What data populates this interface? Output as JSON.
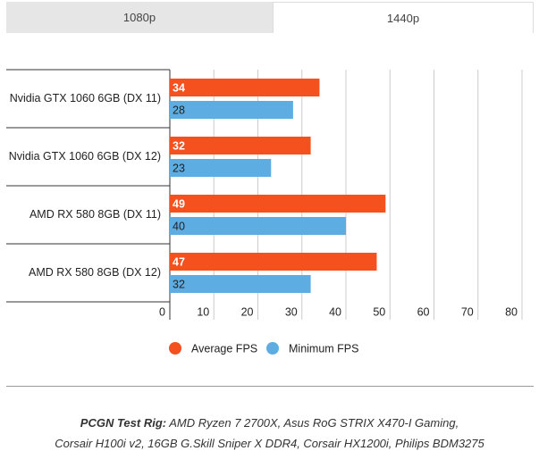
{
  "tabs": [
    "1080p",
    "1440p"
  ],
  "chart_data": {
    "type": "bar",
    "orientation": "horizontal",
    "categories": [
      "Nvidia GTX 1060 6GB (DX 11)",
      "Nvidia GTX 1060 6GB (DX 12)",
      "AMD RX 580 8GB (DX 11)",
      "AMD RX 580 8GB (DX 12)"
    ],
    "series": [
      {
        "name": "Average FPS",
        "color": "#f4511e",
        "values": [
          34,
          32,
          49,
          47
        ]
      },
      {
        "name": "Minimum FPS",
        "color": "#5dade2",
        "values": [
          28,
          23,
          40,
          32
        ]
      }
    ],
    "xlim": [
      0,
      80
    ],
    "xticks": [
      0,
      10,
      20,
      30,
      40,
      50,
      60,
      70,
      80
    ],
    "grid": true,
    "legend": "bottom"
  },
  "footer": {
    "label": "PCGN Test Rig:",
    "lines": [
      "AMD Ryzen 7 2700X, Asus RoG STRIX X470-I Gaming,",
      "Corsair H100i v2, 16GB G.Skill Sniper X DDR4, Corsair HX1200i, Philips BDM3275"
    ]
  }
}
